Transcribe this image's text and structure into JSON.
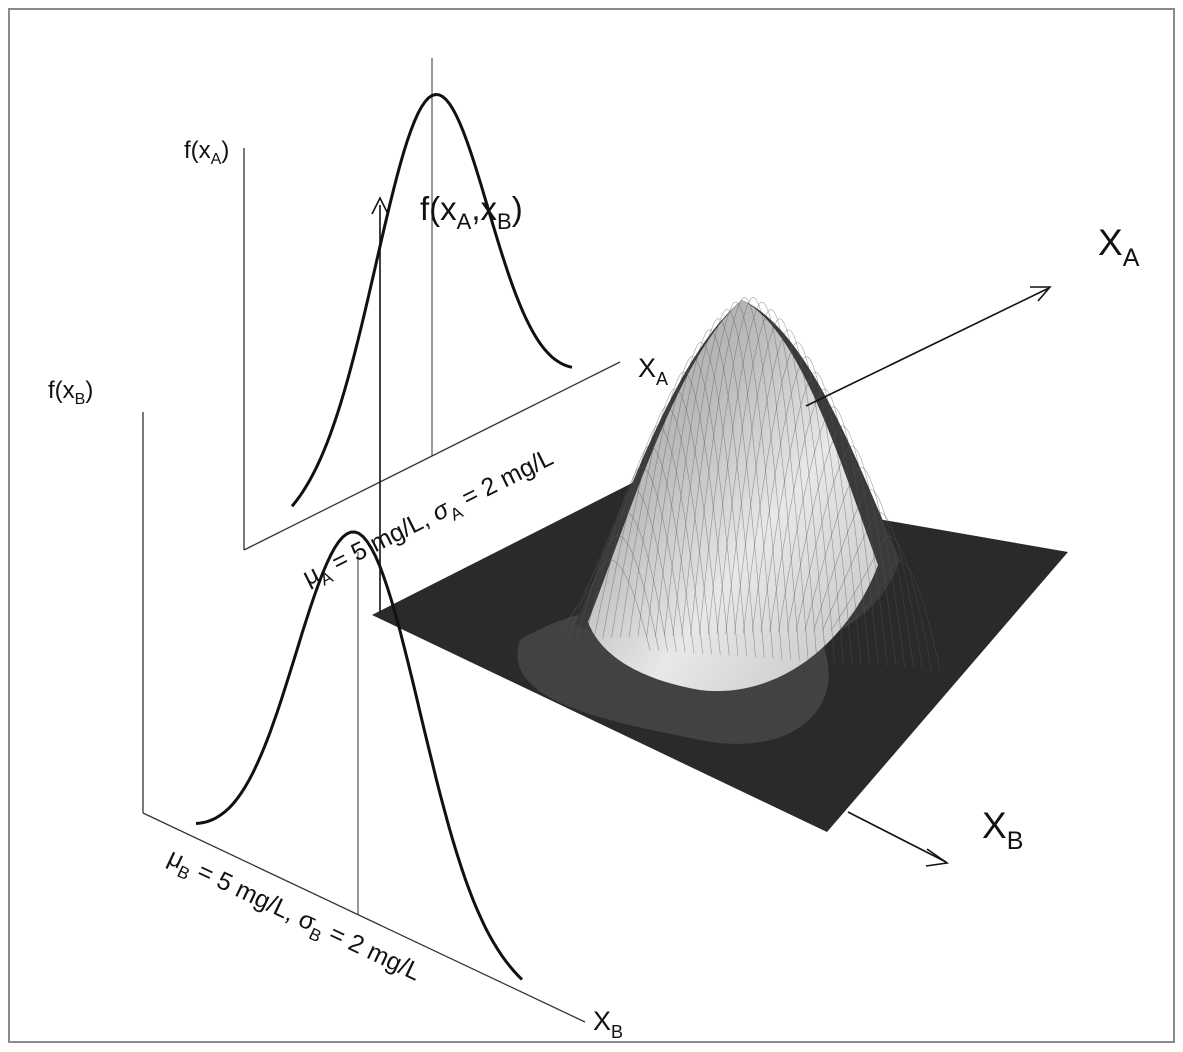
{
  "labels": {
    "f_xA": {
      "main": "f(x",
      "sub": "A",
      "close": ")"
    },
    "f_xB": {
      "main": "f(x",
      "sub": "B",
      "close": ")"
    },
    "f_joint": {
      "main": "f(x",
      "sub1": "A",
      "comma": ",x",
      "sub2": "B",
      "close": ")"
    },
    "axis_XA_small": {
      "main": "X",
      "sub": "A"
    },
    "axis_XB_small": {
      "main": "X",
      "sub": "B"
    },
    "axis_XA_big": {
      "main": "X",
      "sub": "A"
    },
    "axis_XB_big": {
      "main": "X",
      "sub": "B"
    },
    "dist_A": {
      "mu": "μ",
      "mu_sub": "A",
      "mu_val": " = 5 mg/L, ",
      "sigma": "σ",
      "sigma_sub": "A",
      "sigma_val": " = 2 mg/L"
    },
    "dist_B": {
      "mu": "μ",
      "mu_sub": "B",
      "mu_val": " = 5 mg/L, ",
      "sigma": "σ",
      "sigma_sub": "B",
      "sigma_val": " = 2 mg/L"
    }
  },
  "distributions": {
    "A": {
      "mean": 5,
      "sd": 2,
      "unit": "mg/L"
    },
    "B": {
      "mean": 5,
      "sd": 2,
      "unit": "mg/L"
    }
  },
  "colors": {
    "frame": "#8a8a8a",
    "line": "#111111",
    "surface_dark": "#2a2a2a",
    "surface_light": "#f2f2f2"
  }
}
